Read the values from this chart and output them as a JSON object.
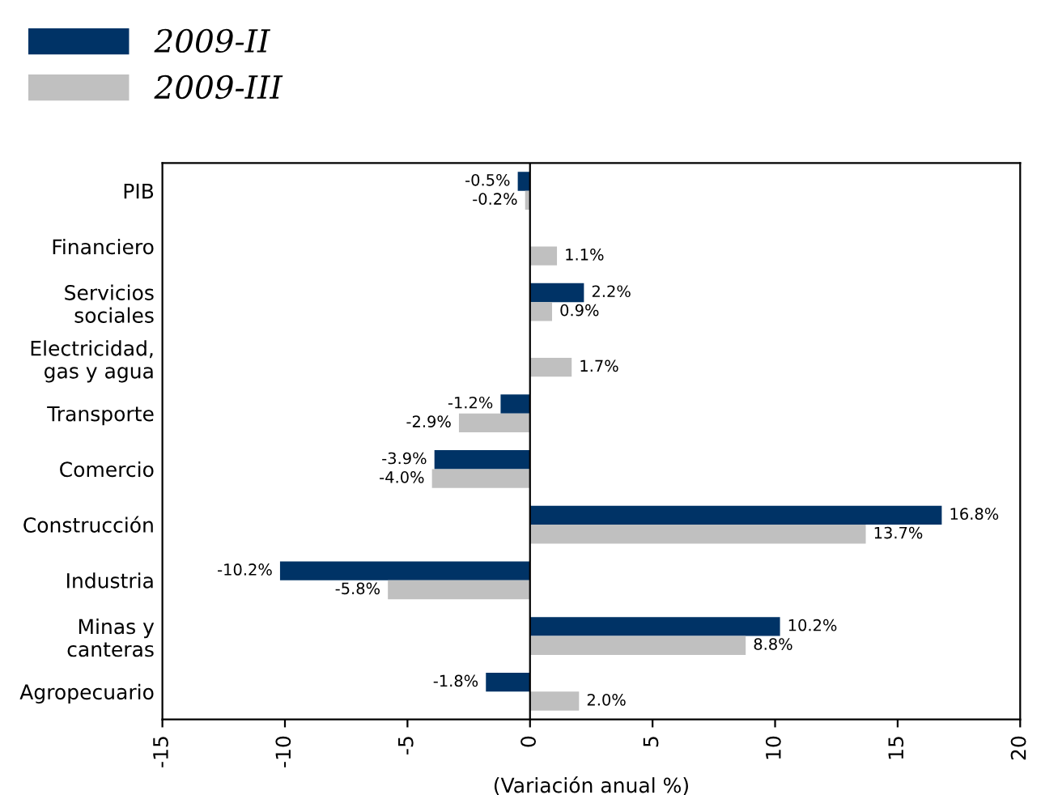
{
  "chart_data": {
    "type": "bar",
    "orientation": "horizontal",
    "xlabel": "(Variación anual %)",
    "categories": [
      "PIB",
      "Financiero",
      "Servicios\nsociales",
      "Electricidad,\ngas y agua",
      "Transporte",
      "Comercio",
      "Construcción",
      "Industria",
      "Minas y\ncanteras",
      "Agropecuario"
    ],
    "series": [
      {
        "name": "2009-II",
        "color": "#003366",
        "values": [
          -0.5,
          null,
          2.2,
          null,
          -1.2,
          -3.9,
          16.8,
          -10.2,
          10.2,
          -1.8
        ],
        "value_labels": [
          "-0.5%",
          null,
          "2.2%",
          null,
          "-1.2%",
          "-3.9%",
          "16.8%",
          "-10.2%",
          "10.2%",
          "-1.8%"
        ]
      },
      {
        "name": "2009-III",
        "color": "#c0c0c0",
        "values": [
          -0.2,
          1.1,
          0.9,
          1.7,
          -2.9,
          -4.0,
          13.7,
          -5.8,
          8.8,
          2.0
        ],
        "value_labels": [
          "-0.2%",
          "1.1%",
          "0.9%",
          "1.7%",
          "-2.9%",
          "-4.0%",
          "13.7%",
          "-5.8%",
          "8.8%",
          "2.0%"
        ]
      }
    ],
    "xlim": [
      -15,
      20
    ],
    "xticks": [
      -15,
      -10,
      -5,
      0,
      5,
      10,
      15,
      20
    ],
    "ref_lines": [
      {
        "axis": "x",
        "value": 0,
        "color": "#000000"
      }
    ],
    "grid": false,
    "legend": "top left"
  }
}
